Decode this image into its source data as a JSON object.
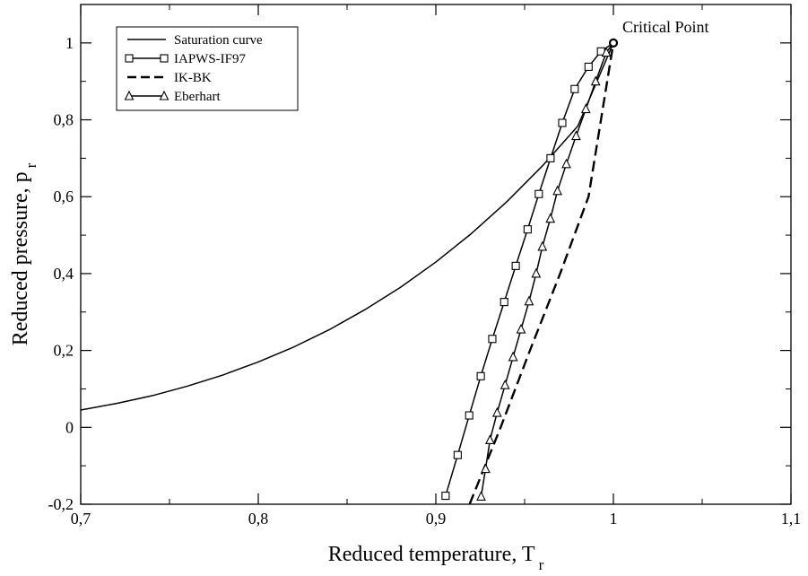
{
  "chart_data": {
    "type": "line",
    "xlabel": "Reduced temperature, T",
    "xlabel_sub": "r",
    "ylabel": "Reduced pressure, p",
    "ylabel_sub": "r",
    "xlim": [
      0.7,
      1.1
    ],
    "ylim": [
      -0.2,
      1.1
    ],
    "xticks": [
      0.7,
      0.8,
      0.9,
      1.0,
      1.1
    ],
    "xtick_labels": [
      "0,7",
      "0,8",
      "0,9",
      "1",
      "1,1"
    ],
    "yticks": [
      -0.2,
      0,
      0.2,
      0.4,
      0.6,
      0.8,
      1.0
    ],
    "ytick_labels": [
      "-0,2",
      "0",
      "0,2",
      "0,4",
      "0,6",
      "0,8",
      "1"
    ],
    "grid": false,
    "legend_position": "top-left",
    "annotation": {
      "text": "Critical Point",
      "x": 1.0,
      "y": 1.0
    },
    "series": [
      {
        "name": "Saturation curve",
        "style": "solid",
        "marker": "none",
        "x": [
          0.7,
          0.72,
          0.74,
          0.76,
          0.78,
          0.8,
          0.82,
          0.84,
          0.86,
          0.88,
          0.9,
          0.92,
          0.94,
          0.96,
          0.98,
          1.0
        ],
        "y": [
          0.045,
          0.062,
          0.082,
          0.107,
          0.136,
          0.17,
          0.209,
          0.254,
          0.306,
          0.364,
          0.43,
          0.504,
          0.587,
          0.68,
          0.784,
          1.0
        ]
      },
      {
        "name": "IAPWS-IF97",
        "style": "solid",
        "marker": "square",
        "x": [
          0.9055,
          0.9123,
          0.9188,
          0.9253,
          0.9318,
          0.9385,
          0.945,
          0.9517,
          0.958,
          0.9646,
          0.9712,
          0.9782,
          0.986,
          0.993,
          1.0
        ],
        "y": [
          -0.178,
          -0.072,
          0.031,
          0.133,
          0.23,
          0.326,
          0.42,
          0.515,
          0.607,
          0.7,
          0.792,
          0.88,
          0.938,
          0.978,
          1.0
        ]
      },
      {
        "name": "IK-BK",
        "style": "dashed",
        "marker": "none",
        "x": [
          0.919,
          0.9365,
          0.953,
          0.97,
          0.986,
          1.0
        ],
        "y": [
          -0.2,
          0.0,
          0.2,
          0.4,
          0.6,
          1.0
        ]
      },
      {
        "name": "Eberhart",
        "style": "solid",
        "marker": "triangle",
        "x": [
          0.9255,
          0.928,
          0.9305,
          0.9345,
          0.939,
          0.9435,
          0.948,
          0.9525,
          0.9565,
          0.96,
          0.9645,
          0.9685,
          0.9735,
          0.979,
          0.9845,
          0.99,
          0.996,
          1.0
        ],
        "y": [
          -0.18,
          -0.108,
          -0.033,
          0.038,
          0.11,
          0.183,
          0.255,
          0.328,
          0.4,
          0.47,
          0.543,
          0.615,
          0.685,
          0.758,
          0.828,
          0.9,
          0.975,
          1.0
        ]
      }
    ]
  }
}
